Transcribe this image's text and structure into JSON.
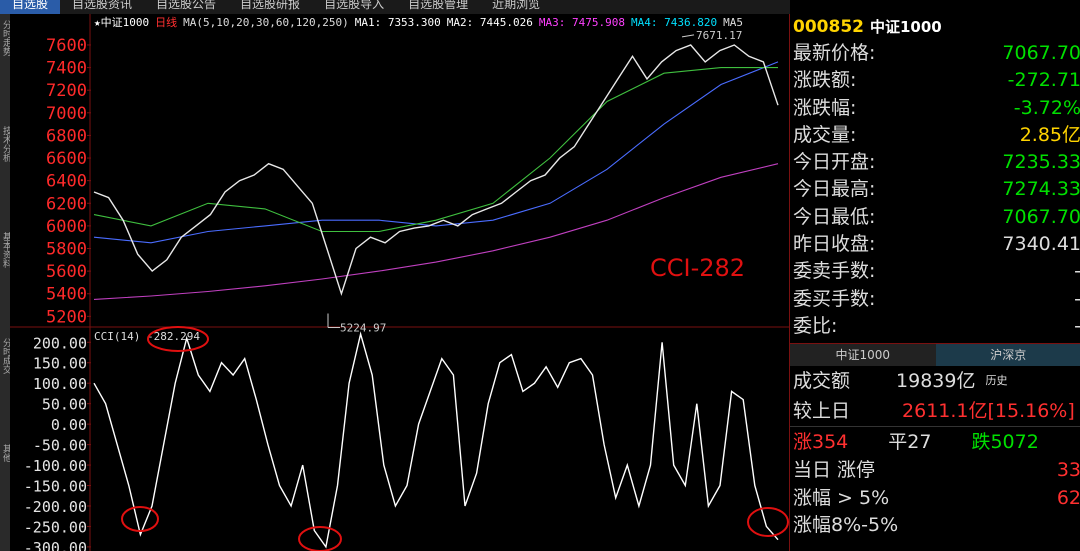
{
  "menu": [
    "自选股",
    "自选股资讯",
    "自选股公告",
    "自选股研报",
    "自选股导入",
    "自选股管理",
    "近期浏览"
  ],
  "sidebar": [
    "分时走势",
    "技术分析",
    "基本资料",
    "分时成交",
    "其他"
  ],
  "price_chart": {
    "type": "line",
    "header": [
      "★中证1000",
      "日线",
      "MA(5,10,20,30,60,120,250)",
      "MA1: 7353.300",
      "MA2: 7445.026",
      "MA3: 7475.908",
      "MA4: 7436.820",
      "MA5"
    ],
    "ylim": [
      5150,
      7750
    ],
    "yticks": [
      7600,
      7400,
      7200,
      7000,
      6800,
      6600,
      6400,
      6200,
      6000,
      5800,
      5600,
      5400,
      5200
    ],
    "series": [
      {
        "name": "收盘",
        "color": "#e8e8e8",
        "values": [
          6300,
          6250,
          6050,
          5750,
          5600,
          5700,
          5900,
          6000,
          6100,
          6300,
          6400,
          6450,
          6550,
          6500,
          6350,
          6200,
          5800,
          5400,
          5800,
          5900,
          5850,
          5950,
          5980,
          6000,
          6050,
          6000,
          6100,
          6150,
          6200,
          6300,
          6400,
          6450,
          6600,
          6700,
          6900,
          7100,
          7300,
          7500,
          7300,
          7450,
          7550,
          7600,
          7450,
          7550,
          7600,
          7500,
          7450,
          7067.7
        ]
      },
      {
        "name": "MA60",
        "color": "#3fbf3f",
        "values": [
          6100,
          6000,
          6200,
          6150,
          5950,
          5950,
          6050,
          6200,
          6600,
          7100,
          7350,
          7400,
          7400
        ]
      },
      {
        "name": "MA120",
        "color": "#4a6cff",
        "values": [
          5900,
          5850,
          5950,
          6000,
          6050,
          6050,
          6000,
          6050,
          6200,
          6500,
          6900,
          7250,
          7450
        ]
      },
      {
        "name": "MA250",
        "color": "#c040c0",
        "values": [
          5350,
          5380,
          5420,
          5470,
          5530,
          5600,
          5680,
          5780,
          5900,
          6050,
          6250,
          6430,
          6550
        ]
      }
    ],
    "annotations": [
      {
        "text": "7671.17",
        "value": 7671.17
      },
      {
        "text": "5224.97",
        "value": 5224.97
      }
    ],
    "note": "CCI-282"
  },
  "cci_chart": {
    "type": "line",
    "header": "CCI(14) -282.294",
    "ylim": [
      -310,
      230
    ],
    "yticks": [
      {
        "value": 200,
        "label": "200.00"
      },
      {
        "value": 150,
        "label": "150.00"
      },
      {
        "value": 100,
        "label": "100.00"
      },
      {
        "value": 50,
        "label": "50.00"
      },
      {
        "value": 0,
        "label": "0.00"
      },
      {
        "value": -50,
        "label": "-50.00"
      },
      {
        "value": -100,
        "label": "-100.00"
      },
      {
        "value": -150,
        "label": "-150.00"
      },
      {
        "value": -200,
        "label": "-200.00"
      },
      {
        "value": -250,
        "label": "-250.00"
      },
      {
        "value": -300,
        "label": "-300.00"
      }
    ],
    "series": [
      {
        "name": "CCI",
        "color": "#ffffff",
        "values": [
          100,
          50,
          -50,
          -150,
          -270,
          -200,
          -50,
          100,
          210,
          120,
          80,
          150,
          120,
          160,
          60,
          -50,
          -150,
          -200,
          -100,
          -260,
          -300,
          -150,
          100,
          220,
          120,
          -100,
          -200,
          -150,
          0,
          80,
          160,
          120,
          -200,
          -120,
          50,
          150,
          170,
          80,
          100,
          140,
          90,
          150,
          160,
          120,
          -50,
          -180,
          -100,
          -200,
          -100,
          200,
          -100,
          -150,
          50,
          -200,
          -150,
          80,
          60,
          -150,
          -250,
          -282.294
        ]
      }
    ]
  },
  "quote": {
    "code": "000852",
    "name": "中证1000",
    "rows": [
      [
        "最新价格:",
        "7067.70"
      ],
      [
        "涨跌额:",
        "-272.71"
      ],
      [
        "涨跌幅:",
        "-3.72%"
      ],
      [
        "成交量:",
        "2.85亿"
      ],
      [
        "今日开盘:",
        "7235.33"
      ],
      [
        "今日最高:",
        "7274.33"
      ],
      [
        "今日最低:",
        "7067.70"
      ],
      [
        "昨日收盘:",
        "7340.41"
      ],
      [
        "委卖手数:",
        "-"
      ],
      [
        "委买手数:",
        "-"
      ],
      [
        "委比:",
        "-"
      ]
    ],
    "tabs": [
      "中证1000",
      "沪深京"
    ],
    "turnover": [
      "成交额",
      "19839亿",
      "历史"
    ],
    "vs_prev": [
      "较上日",
      "2611.1亿",
      "[15.16%]"
    ],
    "breadth": [
      "涨354",
      "平27",
      "跌5072"
    ],
    "limit_up": [
      "当日 涨停",
      "33"
    ],
    "up5": [
      "涨幅 > 5%",
      "62"
    ],
    "up85": "涨幅8%-5%"
  }
}
